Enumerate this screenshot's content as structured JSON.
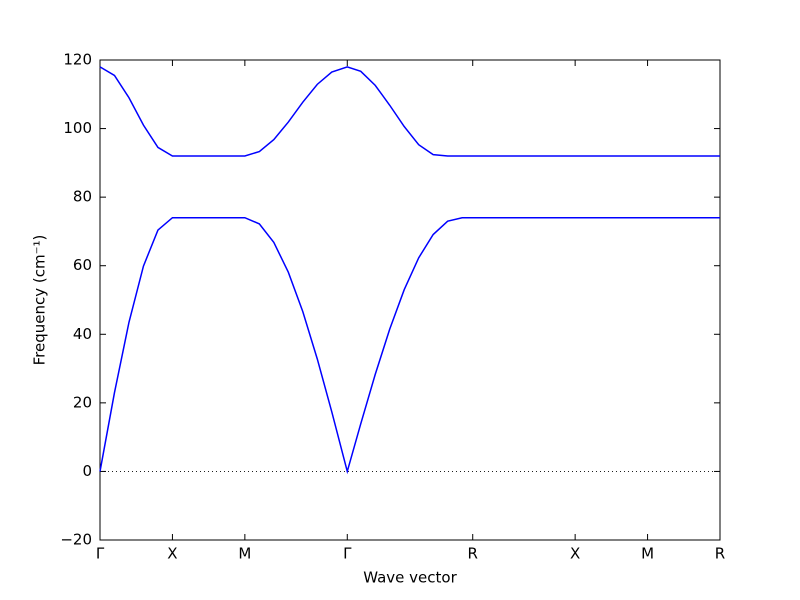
{
  "chart_data": {
    "type": "line",
    "xlabel": "Wave vector",
    "ylabel": "Frequency (cm⁻¹)",
    "x": [
      0,
      0.1,
      0.2,
      0.3,
      0.4,
      0.5,
      1.0,
      1.1,
      1.2,
      1.3,
      1.4,
      1.5,
      1.6,
      1.707,
      1.8,
      1.9,
      2.0,
      2.1,
      2.2,
      2.3,
      2.4,
      2.5,
      2.573,
      3.28,
      3.78,
      4.28
    ],
    "series": [
      {
        "color": "#0000ff",
        "values": [
          0,
          23,
          43.5,
          59.9,
          70.4,
          74,
          74,
          72.2,
          66.8,
          58.1,
          46.6,
          32.8,
          17.4,
          0,
          13.9,
          28.3,
          41.5,
          53,
          62.3,
          69.1,
          73,
          74,
          74,
          74,
          74,
          74
        ]
      },
      {
        "color": "#0000ff",
        "values": [
          118,
          115.5,
          109,
          101,
          94.5,
          92,
          92,
          93.3,
          96.8,
          101.9,
          107.7,
          112.9,
          116.5,
          118,
          116.7,
          112.6,
          106.8,
          100.6,
          95.3,
          92.4,
          92,
          92,
          92,
          92,
          92,
          92
        ]
      }
    ],
    "xlim": [
      0,
      4.28
    ],
    "xticks": [
      {
        "value": 0,
        "label": "Γ"
      },
      {
        "value": 0.5,
        "label": "X"
      },
      {
        "value": 1.0,
        "label": "M"
      },
      {
        "value": 1.707,
        "label": "Γ"
      },
      {
        "value": 2.573,
        "label": "R"
      },
      {
        "value": 3.28,
        "label": "X"
      },
      {
        "value": 3.78,
        "label": "M"
      },
      {
        "value": 4.28,
        "label": "R"
      }
    ],
    "ylim": [
      -20,
      120
    ],
    "yticks": [
      {
        "value": -20,
        "label": "−20"
      },
      0,
      20,
      40,
      60,
      80,
      100,
      120
    ],
    "zero_line": true,
    "grid": false
  }
}
